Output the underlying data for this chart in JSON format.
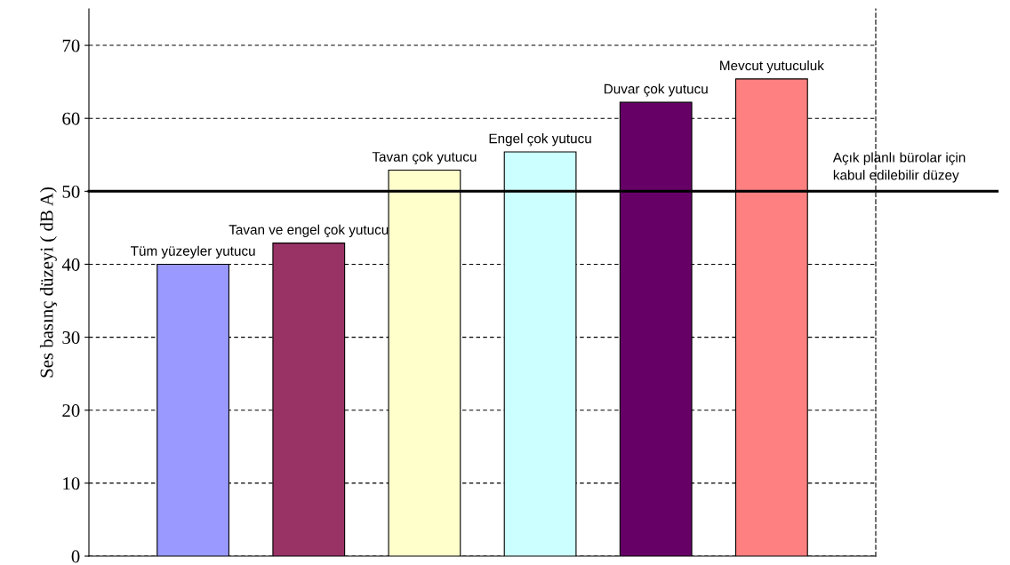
{
  "chart_data": {
    "type": "bar",
    "ylabel": "Ses basınç düzeyi ( dB A)",
    "categories": [
      "Tüm yüzeyler yutucu",
      "Tavan ve engel çok yutucu",
      "Tavan çok yutucu",
      "Engel çok yutucu",
      "Duvar çok yutucu",
      "Mevcut yutuculuk"
    ],
    "values": [
      40,
      42.9,
      52.9,
      55.4,
      62.2,
      65.4
    ],
    "colors": [
      "#9999ff",
      "#993366",
      "#ffffcc",
      "#ccffff",
      "#660066",
      "#ff8080"
    ],
    "ylim": [
      0,
      75
    ],
    "yticks": [
      0,
      10,
      20,
      30,
      40,
      50,
      60,
      70
    ],
    "grid": "y",
    "ref_lines": [
      {
        "axis": "y",
        "value": 50,
        "label": "Açık planlı bürolar için\nkabul edilebilir düzey",
        "color": "#000000",
        "line_style": "solid"
      }
    ]
  }
}
